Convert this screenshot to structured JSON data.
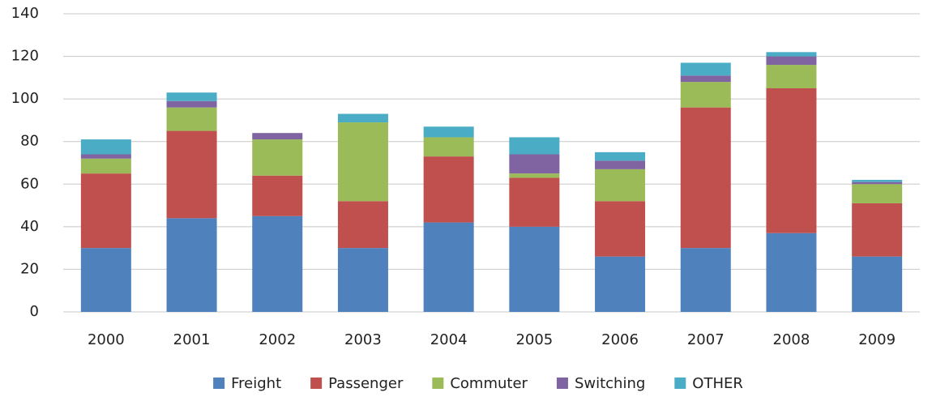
{
  "chart_data": {
    "type": "stacked_bar",
    "categories": [
      "2000",
      "2001",
      "2002",
      "2003",
      "2004",
      "2005",
      "2006",
      "2007",
      "2008",
      "2009"
    ],
    "series": [
      {
        "name": "Freight",
        "color": "#4f81bd",
        "values": [
          30,
          44,
          45,
          30,
          42,
          40,
          26,
          30,
          37,
          26
        ]
      },
      {
        "name": "Passenger",
        "color": "#c0504d",
        "values": [
          35,
          41,
          19,
          22,
          31,
          23,
          26,
          66,
          68,
          25
        ]
      },
      {
        "name": "Commuter",
        "color": "#9bbb59",
        "values": [
          7,
          11,
          17,
          37,
          9,
          2,
          15,
          12,
          11,
          9
        ]
      },
      {
        "name": "Switching",
        "color": "#8064a2",
        "values": [
          2,
          3,
          3,
          0,
          0,
          9,
          4,
          3,
          4,
          1
        ]
      },
      {
        "name": "OTHER",
        "color": "#4bacc6",
        "values": [
          7,
          4,
          0,
          4,
          5,
          8,
          4,
          6,
          2,
          1
        ]
      }
    ],
    "ylim": [
      0,
      140
    ],
    "yticks": [
      0,
      20,
      40,
      60,
      80,
      100,
      120,
      140
    ],
    "grid": true,
    "legend": "bottom"
  }
}
